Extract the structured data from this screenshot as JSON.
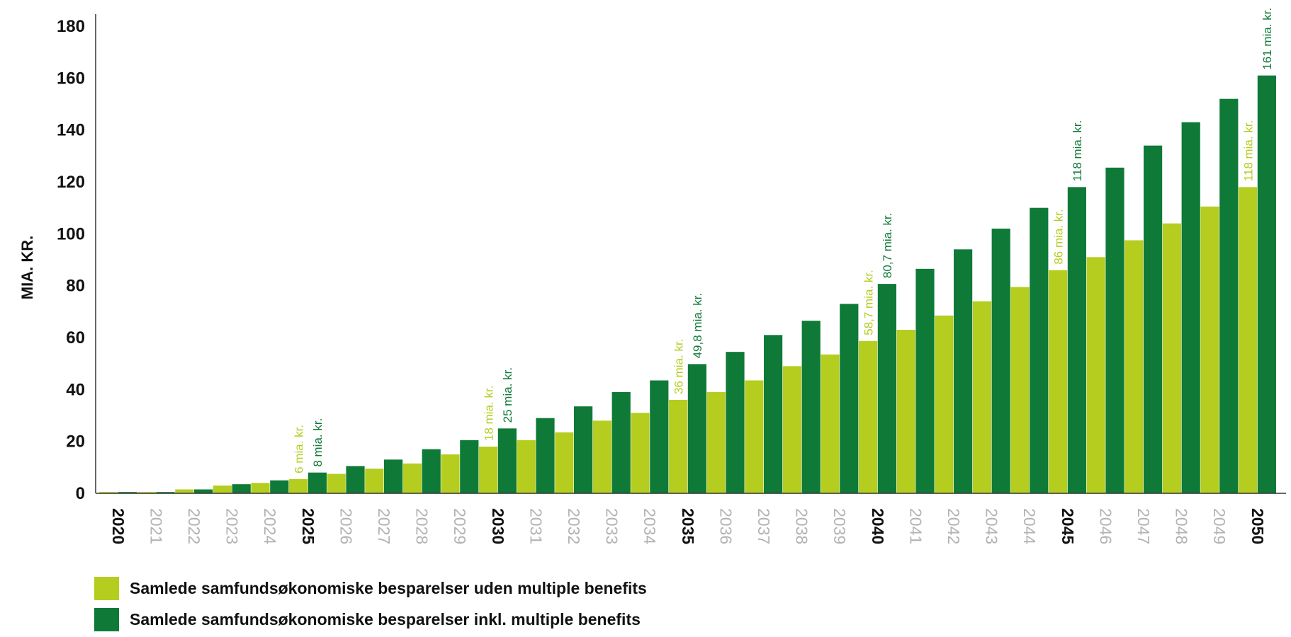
{
  "chart_data": {
    "type": "bar",
    "ylabel": "MIA. KR.",
    "xlabel": "",
    "ylim": [
      0,
      180
    ],
    "yticks": [
      0,
      20,
      40,
      60,
      80,
      100,
      120,
      140,
      160,
      180
    ],
    "grid": false,
    "legend_position": "bottom-left",
    "categories": [
      "2020",
      "2021",
      "2022",
      "2023",
      "2024",
      "2025",
      "2026",
      "2027",
      "2028",
      "2029",
      "2030",
      "2031",
      "2032",
      "2033",
      "2034",
      "2035",
      "2036",
      "2037",
      "2038",
      "2039",
      "2040",
      "2041",
      "2042",
      "2043",
      "2044",
      "2045",
      "2046",
      "2047",
      "2048",
      "2049",
      "2050"
    ],
    "major_categories": [
      "2020",
      "2025",
      "2030",
      "2035",
      "2040",
      "2045",
      "2050"
    ],
    "series": [
      {
        "name": "Samlede samfundsøkonomiske besparelser uden multiple benefits",
        "color": "#b5cd1e",
        "values": [
          0.5,
          0.5,
          1.5,
          3,
          4,
          5.5,
          7.5,
          9.5,
          11.5,
          15,
          18,
          20.5,
          23.5,
          28,
          31,
          36,
          39,
          43.5,
          49,
          53.5,
          58.7,
          63,
          68.5,
          74,
          79.5,
          86,
          91,
          97.5,
          104,
          110.5,
          118
        ]
      },
      {
        "name": "Samlede samfundsøkonomiske besparelser inkl. multiple benefits",
        "color": "#0f7a38",
        "values": [
          0.5,
          0.5,
          1.5,
          3.5,
          5,
          8,
          10.5,
          13,
          17,
          20.5,
          25,
          29,
          33.5,
          39,
          43.5,
          49.8,
          54.5,
          61,
          66.5,
          73,
          80.7,
          86.5,
          94,
          102,
          110,
          118,
          125.5,
          134,
          143,
          152,
          161
        ]
      }
    ],
    "annotations": [
      {
        "category": "2025",
        "series": 0,
        "text": "6 mia. kr."
      },
      {
        "category": "2025",
        "series": 1,
        "text": "8 mia. kr."
      },
      {
        "category": "2030",
        "series": 0,
        "text": "18 mia. kr."
      },
      {
        "category": "2030",
        "series": 1,
        "text": "25 mia. kr."
      },
      {
        "category": "2035",
        "series": 0,
        "text": "36 mia. kr."
      },
      {
        "category": "2035",
        "series": 1,
        "text": "49,8 mia. kr."
      },
      {
        "category": "2040",
        "series": 0,
        "text": "58,7 mia. kr."
      },
      {
        "category": "2040",
        "series": 1,
        "text": "80,7 mia. kr."
      },
      {
        "category": "2045",
        "series": 0,
        "text": "86 mia. kr."
      },
      {
        "category": "2045",
        "series": 1,
        "text": "118 mia. kr."
      },
      {
        "category": "2050",
        "series": 0,
        "text": "118 mia. kr."
      },
      {
        "category": "2050",
        "series": 1,
        "text": "161 mia. kr."
      }
    ]
  },
  "axis_color": "#333333",
  "minor_tick_color": "#b3b3b3",
  "legend": {
    "items": [
      {
        "label": "Samlede samfundsøkonomiske besparelser uden multiple benefits",
        "color": "#b5cd1e"
      },
      {
        "label": "Samlede samfundsøkonomiske besparelser inkl. multiple benefits",
        "color": "#0f7a38"
      }
    ]
  }
}
